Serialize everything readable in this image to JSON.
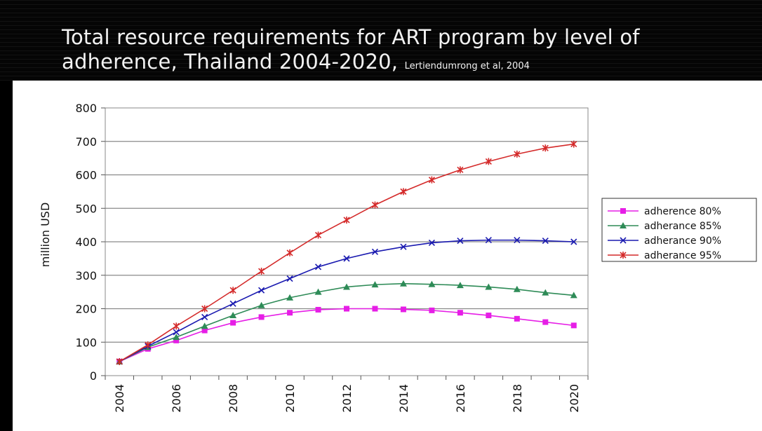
{
  "title": "Total resource requirements for ART program by level of adherence, Thailand 2004-2020,",
  "citation": "Lertiendumrong et al, 2004",
  "chart_data": {
    "type": "line",
    "title": "Total resource requirements for ART program by level of adherence, Thailand 2004-2020",
    "xlabel": "",
    "ylabel": "million USD",
    "x": [
      2004,
      2005,
      2006,
      2007,
      2008,
      2009,
      2010,
      2011,
      2012,
      2013,
      2014,
      2015,
      2016,
      2017,
      2018,
      2019,
      2020
    ],
    "x_tick_labels": [
      "2004",
      "2006",
      "2008",
      "2010",
      "2012",
      "2014",
      "2016",
      "2018",
      "2020"
    ],
    "y_ticks": [
      "0",
      "100",
      "200",
      "300",
      "400",
      "500",
      "600",
      "700",
      "800"
    ],
    "ylim": [
      0,
      800
    ],
    "grid": "horizontal",
    "legend_position": "right",
    "series": [
      {
        "name": "adherence 80%",
        "color": "#e61ee6",
        "marker": "square",
        "values": [
          42,
          80,
          105,
          135,
          158,
          175,
          188,
          197,
          200,
          200,
          198,
          195,
          188,
          180,
          170,
          160,
          150
        ]
      },
      {
        "name": "adherance 85%",
        "color": "#2e8b57",
        "marker": "triangle",
        "values": [
          42,
          85,
          115,
          148,
          180,
          210,
          233,
          250,
          265,
          272,
          275,
          273,
          270,
          265,
          258,
          248,
          240
        ]
      },
      {
        "name": "adherance 90%",
        "color": "#1a1ab0",
        "marker": "x",
        "values": [
          42,
          88,
          130,
          175,
          215,
          255,
          290,
          325,
          350,
          370,
          385,
          397,
          403,
          405,
          405,
          403,
          400
        ]
      },
      {
        "name": "adherance 95%",
        "color": "#d42a2a",
        "marker": "star",
        "values": [
          42,
          92,
          148,
          200,
          255,
          312,
          367,
          420,
          465,
          510,
          550,
          585,
          615,
          640,
          662,
          680,
          692
        ]
      }
    ]
  }
}
